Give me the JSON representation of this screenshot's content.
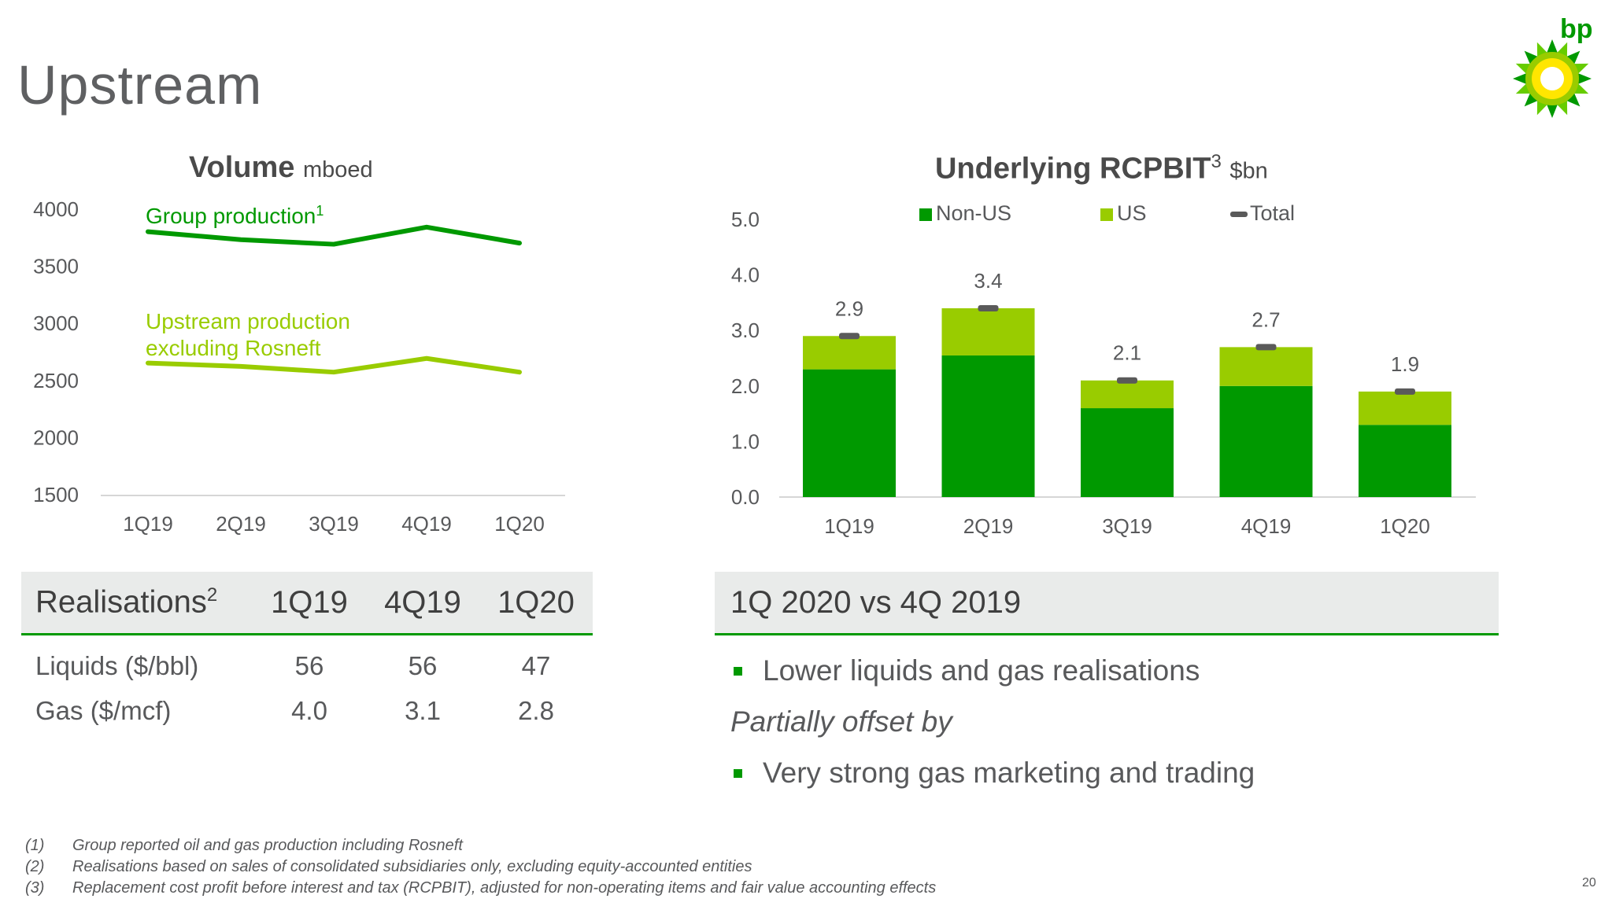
{
  "page": {
    "title": "Upstream",
    "page_number": "20",
    "logo_text": "bp"
  },
  "colors": {
    "dark_green": "#009900",
    "light_green": "#99cc00",
    "total_marker": "#5a5a5a",
    "header_fill": "#e9ebea"
  },
  "volume_chart": {
    "title": "Volume",
    "unit": "mboed"
  },
  "rcpbit_chart": {
    "title": "Underlying RCPBIT",
    "title_sup": "3",
    "unit": "$bn"
  },
  "chart_data": [
    {
      "type": "line",
      "title": "Volume",
      "unit": "mboed",
      "categories": [
        "1Q19",
        "2Q19",
        "3Q19",
        "4Q19",
        "1Q20"
      ],
      "ylim": [
        1500,
        4000
      ],
      "yticks": [
        "4000",
        "3500",
        "3000",
        "2500",
        "2000",
        "1500"
      ],
      "grid": false,
      "series": [
        {
          "name": "Group production",
          "name_sup": "1",
          "label_lines": [
            "Group production"
          ],
          "color": "#009900",
          "values": [
            3810,
            3740,
            3700,
            3850,
            3710
          ]
        },
        {
          "name": "Upstream production excluding Rosneft",
          "label_lines": [
            "Upstream production",
            "excluding Rosneft"
          ],
          "color": "#99cc00",
          "values": [
            2660,
            2630,
            2580,
            2700,
            2580
          ]
        }
      ]
    },
    {
      "type": "bar",
      "stacked": true,
      "title": "Underlying RCPBIT",
      "unit": "$bn",
      "categories": [
        "1Q19",
        "2Q19",
        "3Q19",
        "4Q19",
        "1Q20"
      ],
      "ylim": [
        0,
        5
      ],
      "yticks": [
        "0.0",
        "1.0",
        "2.0",
        "3.0",
        "4.0",
        "5.0"
      ],
      "legend": "top",
      "series": [
        {
          "name": "Non-US",
          "color": "#009900",
          "values": [
            2.3,
            2.55,
            1.6,
            2.0,
            1.3
          ]
        },
        {
          "name": "US",
          "color": "#99cc00",
          "values": [
            0.6,
            0.85,
            0.5,
            0.7,
            0.6
          ]
        },
        {
          "name": "Total",
          "color": "#5a5a5a",
          "values": [
            2.9,
            3.4,
            2.1,
            2.7,
            1.9
          ],
          "labels": [
            "2.9",
            "3.4",
            "2.1",
            "2.7",
            "1.9"
          ]
        }
      ]
    }
  ],
  "realisations": {
    "header": {
      "label": "Realisations",
      "sup": "2",
      "cols": [
        "1Q19",
        "4Q19",
        "1Q20"
      ]
    },
    "rows": [
      {
        "label": "Liquids ($/bbl)",
        "values": [
          "56",
          "56",
          "47"
        ]
      },
      {
        "label": "Gas ($/mcf)",
        "values": [
          "4.0",
          "3.1",
          "2.8"
        ]
      }
    ]
  },
  "commentary": {
    "header": "1Q 2020 vs 4Q 2019",
    "bullet1": "Lower liquids and gas realisations",
    "italic": "Partially offset by",
    "bullet2": "Very strong gas marketing and trading"
  },
  "footnotes": [
    {
      "num": "(1)",
      "text": "Group reported oil and gas production including Rosneft"
    },
    {
      "num": "(2)",
      "text": "Realisations based on sales of consolidated subsidiaries only, excluding equity-accounted entities"
    },
    {
      "num": "(3)",
      "text": "Replacement cost profit before interest and tax (RCPBIT), adjusted for non-operating items and fair value accounting effects"
    }
  ]
}
